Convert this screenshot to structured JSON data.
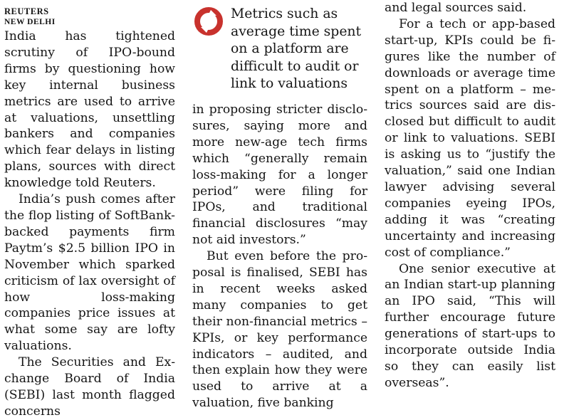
{
  "byline": {
    "agency": "REUTERS",
    "place": "NEW DELHI"
  },
  "pull_quote": {
    "icon": "quote-ring-icon",
    "accent_color": "#c8322d",
    "text": "Metrics such as average time spent on a platform are difficult to audit or link to valuations"
  },
  "column1": {
    "paragraphs": [
      "India has tightened scrutiny of IPO-bound firms by ques­tioning how key internal bu­siness metrics are used to ar­rive at valuations, unsettling bankers and companies which fear delays in listing plans, sources with direct knowledge told Reuters.",
      "India’s push comes after the flop listing of SoftBank-backed payments firm Paytm’s $2.5 billion IPO in November which sparked criticism of lax oversight of how loss-making companies price issues at what some say are lofty valuations.",
      "The Securities and Ex­change Board of India (SEBI) last month flagged concerns"
    ]
  },
  "column2": {
    "paragraphs": [
      "in proposing stricter disclo­sures, saying more and more new-age tech firms which “generally remain loss-mak­ing for a longer period” were filing for IPOs, and tradition­al financial disclosures “may not aid investors.”",
      "But even before the pro­posal is finalised, SEBI has in recent weeks asked many companies to get their non-financial metrics – KPIs, or key performance indicators – audited, and then explain how they were used to arrive at a valuation, five banking"
    ]
  },
  "column3": {
    "paragraphs": [
      "and legal sources said.",
      "For a tech or app-based start-up, KPIs could be fi­gures like the number of downloads or average time spent on a platform – me­trics sources said are dis­closed but difficult to audit or link to valuations. SEBI is asking us to “justify the val­uation,” said one Indian la­wyer advising several com­panies eyeing IPOs, adding it was “creating uncertainty and increasing cost of compliance.”",
      "One senior executive at an Indian start-up planning an IPO said, “This will further encourage future genera­tions of start-ups to incorpo­rate outside India so they can easily list overseas”."
    ]
  }
}
